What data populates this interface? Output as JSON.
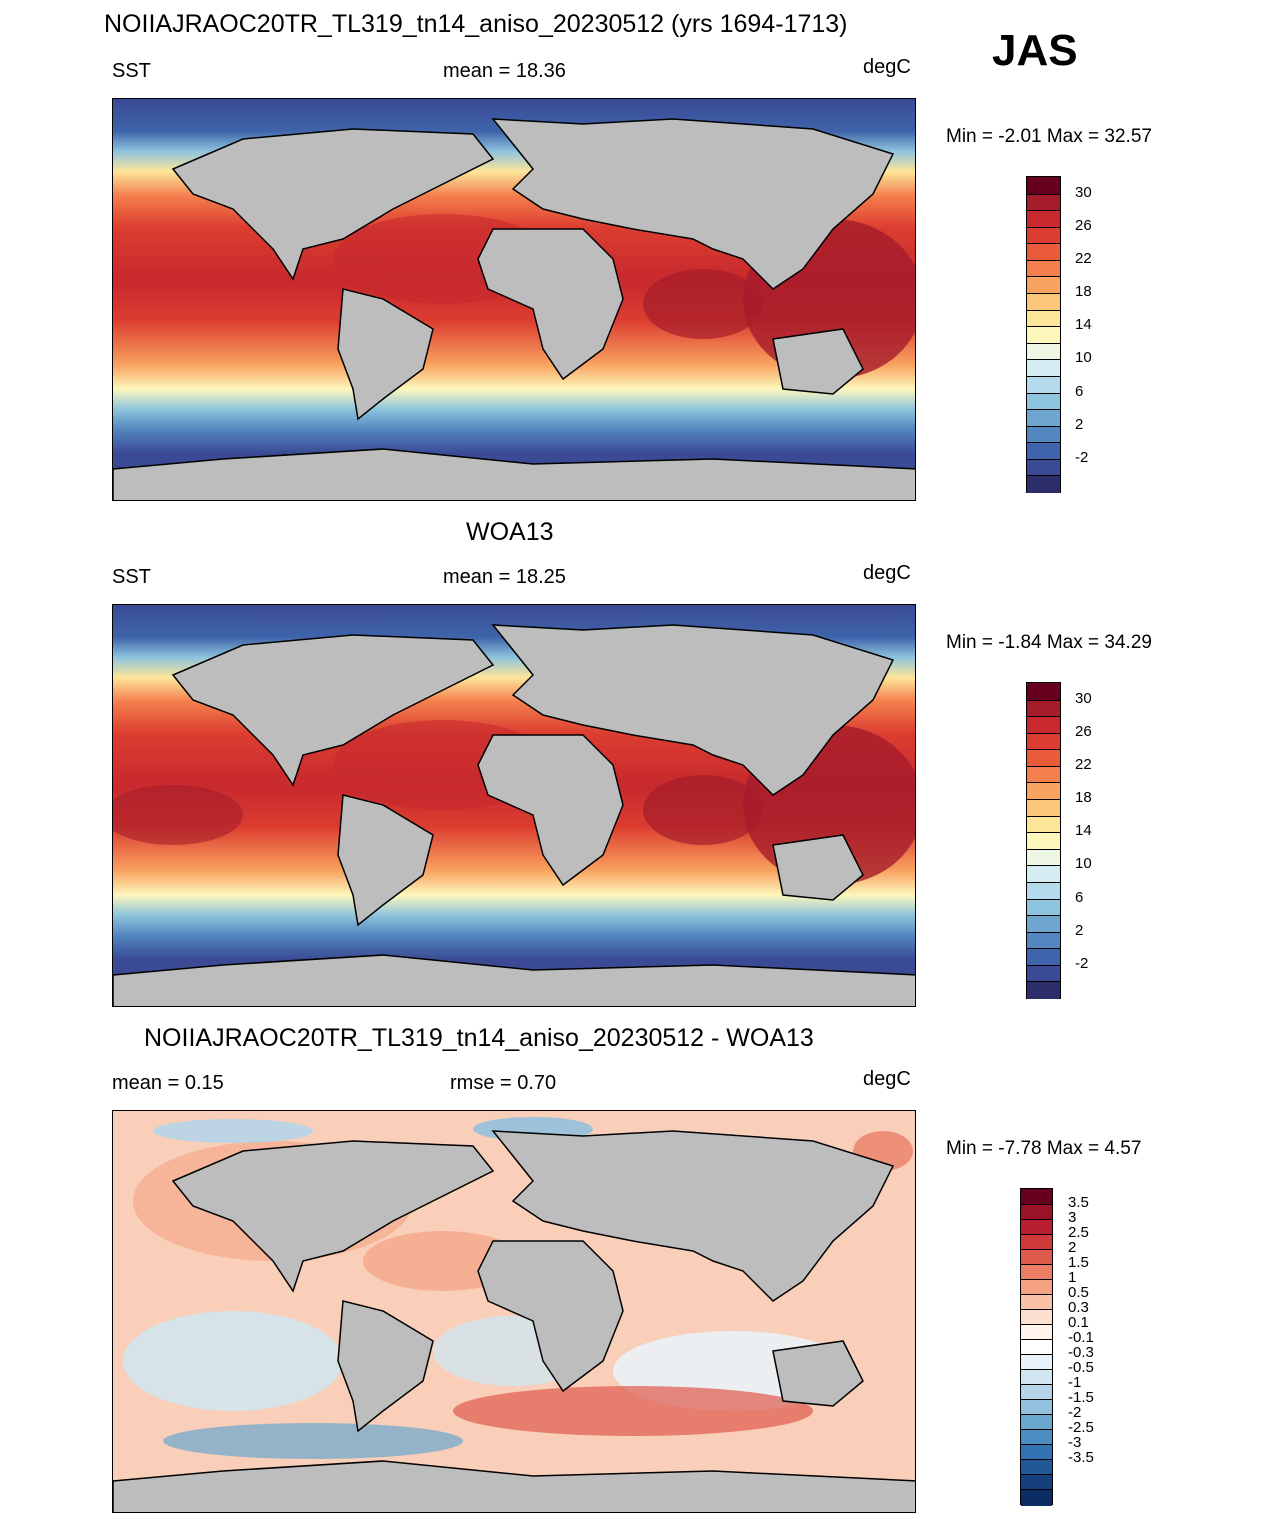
{
  "season": "JAS",
  "panels": [
    {
      "title": "NOIIAJRAOC20TR_TL319_tn14_aniso_20230512 (yrs 1694-1713)",
      "left": "SST",
      "center": "mean =  18.36",
      "right": "degC",
      "minmax": "Min =  -2.01 Max =  32.57",
      "kind": "sst"
    },
    {
      "title": "WOA13",
      "left": "SST",
      "center": "mean =  18.25",
      "right": "degC",
      "minmax": "Min =  -1.84 Max =  34.29",
      "kind": "sst"
    },
    {
      "title": "NOIIAJRAOC20TR_TL319_tn14_aniso_20230512 - WOA13",
      "left": "mean =   0.15",
      "center": "rmse =   0.70",
      "right": "degC",
      "minmax": "Min =  -7.78 Max =   4.57",
      "kind": "diff"
    }
  ],
  "colorbars": {
    "sst": {
      "colors_top_to_bottom": [
        "#67001f",
        "#a51c2a",
        "#c7292e",
        "#dc3d30",
        "#ea5b3a",
        "#f47f4e",
        "#f9a361",
        "#fcc77b",
        "#fde599",
        "#fdf7bc",
        "#eef7e3",
        "#d4ecf2",
        "#b3dbeb",
        "#8ec4de",
        "#6ea6cf",
        "#5386bf",
        "#3f64ab",
        "#3a4a94",
        "#2e2d6b"
      ],
      "labels": [
        "30",
        "26",
        "22",
        "18",
        "14",
        "10",
        "6",
        "2",
        "-2"
      ]
    },
    "diff": {
      "colors_top_to_bottom": [
        "#67001f",
        "#9a1228",
        "#b81f2e",
        "#ce3a3a",
        "#de5a4d",
        "#ea7f66",
        "#f3a182",
        "#f8c2a6",
        "#fde0cf",
        "#fff3ec",
        "#ffffff",
        "#e9f2f8",
        "#d1e5f0",
        "#b5d4e8",
        "#92c0dd",
        "#6aa7cf",
        "#4a8dc1",
        "#3372b0",
        "#225798",
        "#153f7d",
        "#0b2c63"
      ],
      "labels": [
        "3.5",
        "3",
        "2.5",
        "2",
        "1.5",
        "1",
        "0.5",
        "0.3",
        "0.1",
        "-0.1",
        "-0.3",
        "-0.5",
        "-1",
        "-1.5",
        "-2",
        "-2.5",
        "-3",
        "-3.5"
      ]
    }
  }
}
